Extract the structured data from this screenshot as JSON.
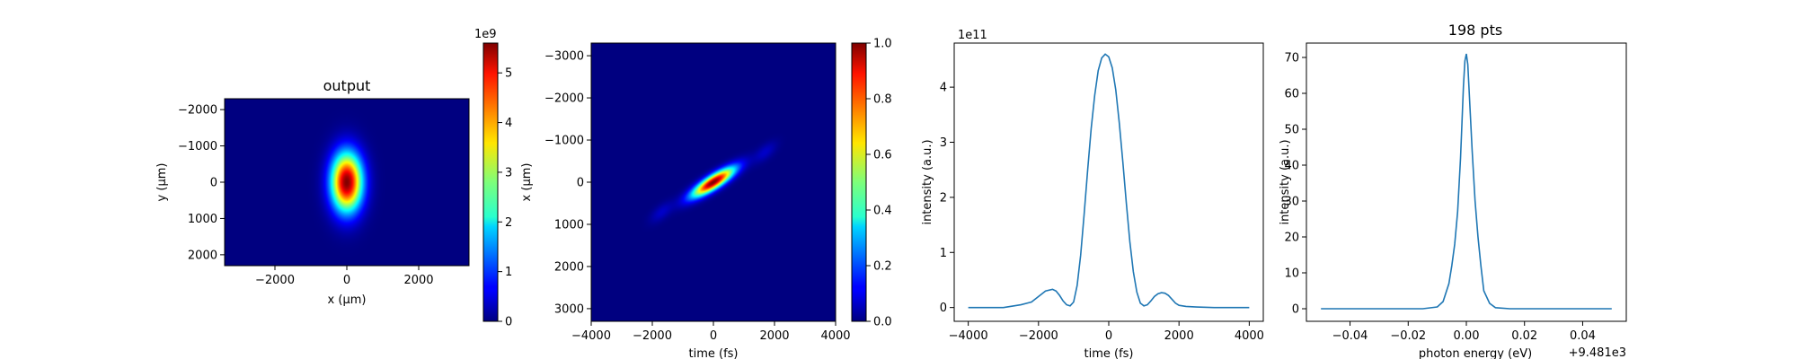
{
  "chart_data": [
    {
      "type": "heatmap",
      "title": "output",
      "xlabel": "x (μm)",
      "ylabel": "y (μm)",
      "xlim": [
        -3400,
        3400
      ],
      "ylim": [
        2300,
        -2300
      ],
      "xticks": [
        -2000,
        0,
        2000
      ],
      "xtick_labels": [
        "−2000",
        "0",
        "2000"
      ],
      "yticks": [
        -2000,
        -1000,
        0,
        1000,
        2000
      ],
      "ytick_labels": [
        "−2000",
        "−1000",
        "0",
        "1000",
        "2000"
      ],
      "colormap": "jet",
      "spot": {
        "center": [
          0,
          0
        ],
        "sigma_x": 300,
        "sigma_y": 560
      },
      "colorbar": {
        "min": 0,
        "max": 5.6,
        "ticks": [
          0,
          1,
          2,
          3,
          4,
          5
        ],
        "tick_labels": [
          "0",
          "1",
          "2",
          "3",
          "4",
          "5"
        ],
        "offset_text": "1e9"
      }
    },
    {
      "type": "heatmap",
      "title": "",
      "xlabel": "time (fs)",
      "ylabel": "x (μm)",
      "xlim": [
        -4000,
        4000
      ],
      "ylim": [
        3300,
        -3300
      ],
      "xticks": [
        -4000,
        -2000,
        0,
        2000,
        4000
      ],
      "xtick_labels": [
        "−4000",
        "−2000",
        "0",
        "2000",
        "4000"
      ],
      "yticks": [
        -3000,
        -2000,
        -1000,
        0,
        1000,
        2000,
        3000
      ],
      "ytick_labels": [
        "−3000",
        "−2000",
        "−1000",
        "0",
        "1000",
        "2000",
        "3000"
      ],
      "colormap": "jet",
      "spot": {
        "center": [
          0,
          0
        ],
        "tilt_um_per_fs": 0.42,
        "sigma_t": 480,
        "sigma_x_perp": 130
      },
      "colorbar": {
        "min": 0,
        "max": 1,
        "ticks": [
          0,
          0.2,
          0.4,
          0.6,
          0.8,
          1.0
        ],
        "tick_labels": [
          "0.0",
          "0.2",
          "0.4",
          "0.6",
          "0.8",
          "1.0"
        ],
        "offset_text": ""
      }
    },
    {
      "type": "line",
      "title": "",
      "xlabel": "time (fs)",
      "ylabel": "intensity (a.u.)",
      "offset_text": "1e11",
      "xlim": [
        -4400,
        4400
      ],
      "ylim": [
        -0.25,
        4.8
      ],
      "xticks": [
        -4000,
        -2000,
        0,
        2000,
        4000
      ],
      "xtick_labels": [
        "−4000",
        "−2000",
        "0",
        "2000",
        "4000"
      ],
      "yticks": [
        0,
        1,
        2,
        3,
        4
      ],
      "ytick_labels": [
        "0",
        "1",
        "2",
        "3",
        "4"
      ],
      "color": "#1f77b4",
      "x": [
        -4000,
        -3500,
        -3000,
        -2500,
        -2200,
        -2000,
        -1800,
        -1600,
        -1500,
        -1400,
        -1300,
        -1200,
        -1100,
        -1000,
        -900,
        -800,
        -700,
        -600,
        -500,
        -400,
        -300,
        -200,
        -100,
        0,
        100,
        200,
        300,
        400,
        500,
        600,
        700,
        800,
        900,
        1000,
        1100,
        1200,
        1300,
        1400,
        1500,
        1600,
        1700,
        1800,
        1900,
        2000,
        2200,
        2500,
        3000,
        3500,
        4000
      ],
      "y": [
        0,
        0,
        0,
        0.05,
        0.1,
        0.2,
        0.3,
        0.33,
        0.3,
        0.22,
        0.12,
        0.05,
        0.03,
        0.1,
        0.4,
        0.95,
        1.7,
        2.5,
        3.25,
        3.85,
        4.3,
        4.53,
        4.6,
        4.55,
        4.35,
        3.95,
        3.35,
        2.65,
        1.9,
        1.2,
        0.65,
        0.28,
        0.08,
        0.03,
        0.05,
        0.12,
        0.2,
        0.25,
        0.27,
        0.26,
        0.22,
        0.15,
        0.08,
        0.04,
        0.02,
        0.01,
        0,
        0,
        0
      ]
    },
    {
      "type": "line",
      "title": "198 pts",
      "xlabel": "photon energy (eV)",
      "ylabel": "intensity (a.u.)",
      "offset_text": "+9.481e3",
      "xlim": [
        -0.055,
        0.055
      ],
      "ylim": [
        -3.5,
        74
      ],
      "xticks": [
        -0.04,
        -0.02,
        0.0,
        0.02,
        0.04
      ],
      "xtick_labels": [
        "−0.04",
        "−0.02",
        "0.00",
        "0.02",
        "0.04"
      ],
      "yticks": [
        0,
        10,
        20,
        30,
        40,
        50,
        60,
        70
      ],
      "ytick_labels": [
        "0",
        "10",
        "20",
        "30",
        "40",
        "50",
        "60",
        "70"
      ],
      "color": "#1f77b4",
      "x": [
        -0.05,
        -0.03,
        -0.015,
        -0.01,
        -0.008,
        -0.006,
        -0.005,
        -0.004,
        -0.003,
        -0.002,
        -0.0015,
        -0.001,
        -0.0005,
        0,
        0.0005,
        0.001,
        0.002,
        0.003,
        0.004,
        0.005,
        0.006,
        0.008,
        0.01,
        0.015,
        0.03,
        0.05
      ],
      "y": [
        0,
        0,
        0,
        0.5,
        2,
        7,
        12,
        18,
        27,
        42,
        52,
        62,
        69,
        71,
        68,
        60,
        44,
        30,
        20,
        12,
        5,
        1.5,
        0.3,
        0,
        0,
        0
      ]
    }
  ]
}
